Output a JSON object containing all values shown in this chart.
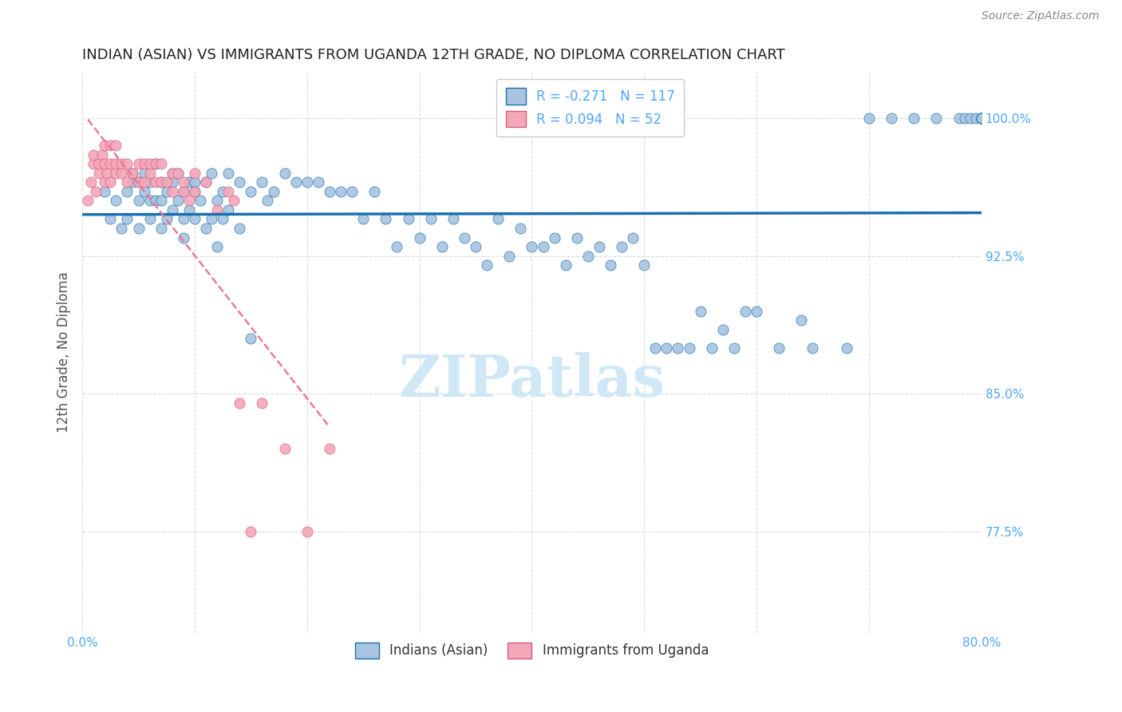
{
  "title": "INDIAN (ASIAN) VS IMMIGRANTS FROM UGANDA 12TH GRADE, NO DIPLOMA CORRELATION CHART",
  "source": "Source: ZipAtlas.com",
  "ylabel": "12th Grade, No Diploma",
  "xmin": 0.0,
  "xmax": 0.8,
  "ymin": 0.72,
  "ymax": 1.025,
  "yticks": [
    0.775,
    0.85,
    0.925,
    1.0
  ],
  "ytick_labels": [
    "77.5%",
    "85.0%",
    "92.5%",
    "100.0%"
  ],
  "blue_R": -0.271,
  "blue_N": 117,
  "pink_R": 0.094,
  "pink_N": 52,
  "blue_color": "#a8c4e0",
  "pink_color": "#f4a7b9",
  "blue_line_color": "#1a6faf",
  "pink_line_color": "#e8799a",
  "axis_label_color": "#4da6ff",
  "title_color": "#222222",
  "watermark_color": "#d0e8f5",
  "background_color": "#ffffff",
  "blue_scatter_x": [
    0.02,
    0.025,
    0.03,
    0.035,
    0.04,
    0.04,
    0.045,
    0.045,
    0.05,
    0.05,
    0.05,
    0.055,
    0.055,
    0.06,
    0.06,
    0.06,
    0.065,
    0.065,
    0.07,
    0.07,
    0.07,
    0.075,
    0.075,
    0.08,
    0.08,
    0.08,
    0.085,
    0.085,
    0.09,
    0.09,
    0.09,
    0.095,
    0.095,
    0.1,
    0.1,
    0.1,
    0.105,
    0.11,
    0.11,
    0.115,
    0.115,
    0.12,
    0.12,
    0.125,
    0.125,
    0.13,
    0.13,
    0.14,
    0.14,
    0.15,
    0.15,
    0.16,
    0.165,
    0.17,
    0.18,
    0.19,
    0.2,
    0.21,
    0.22,
    0.23,
    0.24,
    0.25,
    0.26,
    0.27,
    0.28,
    0.29,
    0.3,
    0.31,
    0.32,
    0.33,
    0.34,
    0.35,
    0.36,
    0.37,
    0.38,
    0.39,
    0.4,
    0.41,
    0.42,
    0.43,
    0.44,
    0.45,
    0.46,
    0.47,
    0.48,
    0.49,
    0.5,
    0.51,
    0.52,
    0.53,
    0.54,
    0.55,
    0.56,
    0.57,
    0.58,
    0.59,
    0.6,
    0.62,
    0.64,
    0.65,
    0.68,
    0.7,
    0.72,
    0.74,
    0.76,
    0.78,
    0.785,
    0.79,
    0.795,
    0.8,
    0.8,
    0.8,
    0.8,
    0.8,
    0.8,
    0.8,
    0.8
  ],
  "blue_scatter_y": [
    0.96,
    0.945,
    0.955,
    0.94,
    0.96,
    0.945,
    0.965,
    0.97,
    0.965,
    0.955,
    0.94,
    0.97,
    0.96,
    0.965,
    0.955,
    0.945,
    0.975,
    0.955,
    0.965,
    0.955,
    0.94,
    0.96,
    0.945,
    0.97,
    0.965,
    0.95,
    0.97,
    0.955,
    0.96,
    0.945,
    0.935,
    0.965,
    0.95,
    0.965,
    0.96,
    0.945,
    0.955,
    0.965,
    0.94,
    0.97,
    0.945,
    0.955,
    0.93,
    0.96,
    0.945,
    0.97,
    0.95,
    0.965,
    0.94,
    0.96,
    0.88,
    0.965,
    0.955,
    0.96,
    0.97,
    0.965,
    0.965,
    0.965,
    0.96,
    0.96,
    0.96,
    0.945,
    0.96,
    0.945,
    0.93,
    0.945,
    0.935,
    0.945,
    0.93,
    0.945,
    0.935,
    0.93,
    0.92,
    0.945,
    0.925,
    0.94,
    0.93,
    0.93,
    0.935,
    0.92,
    0.935,
    0.925,
    0.93,
    0.92,
    0.93,
    0.935,
    0.92,
    0.875,
    0.875,
    0.875,
    0.875,
    0.895,
    0.875,
    0.885,
    0.875,
    0.895,
    0.895,
    0.875,
    0.89,
    0.875,
    0.875,
    1.0,
    1.0,
    1.0,
    1.0,
    1.0,
    1.0,
    1.0,
    1.0,
    1.0,
    1.0,
    1.0,
    1.0,
    1.0,
    1.0,
    1.0,
    1.0
  ],
  "pink_scatter_x": [
    0.005,
    0.008,
    0.01,
    0.01,
    0.012,
    0.015,
    0.015,
    0.018,
    0.02,
    0.02,
    0.02,
    0.022,
    0.025,
    0.025,
    0.025,
    0.03,
    0.03,
    0.03,
    0.035,
    0.035,
    0.04,
    0.04,
    0.045,
    0.05,
    0.05,
    0.055,
    0.055,
    0.06,
    0.06,
    0.065,
    0.065,
    0.07,
    0.07,
    0.075,
    0.08,
    0.08,
    0.085,
    0.09,
    0.09,
    0.095,
    0.1,
    0.1,
    0.11,
    0.12,
    0.13,
    0.135,
    0.14,
    0.15,
    0.16,
    0.18,
    0.2,
    0.22
  ],
  "pink_scatter_y": [
    0.955,
    0.965,
    0.975,
    0.98,
    0.96,
    0.97,
    0.975,
    0.98,
    0.965,
    0.975,
    0.985,
    0.97,
    0.965,
    0.975,
    0.985,
    0.97,
    0.975,
    0.985,
    0.97,
    0.975,
    0.965,
    0.975,
    0.97,
    0.975,
    0.965,
    0.975,
    0.965,
    0.97,
    0.975,
    0.965,
    0.975,
    0.965,
    0.975,
    0.965,
    0.97,
    0.96,
    0.97,
    0.96,
    0.965,
    0.955,
    0.97,
    0.96,
    0.965,
    0.95,
    0.96,
    0.955,
    0.845,
    0.775,
    0.845,
    0.82,
    0.775,
    0.82
  ]
}
